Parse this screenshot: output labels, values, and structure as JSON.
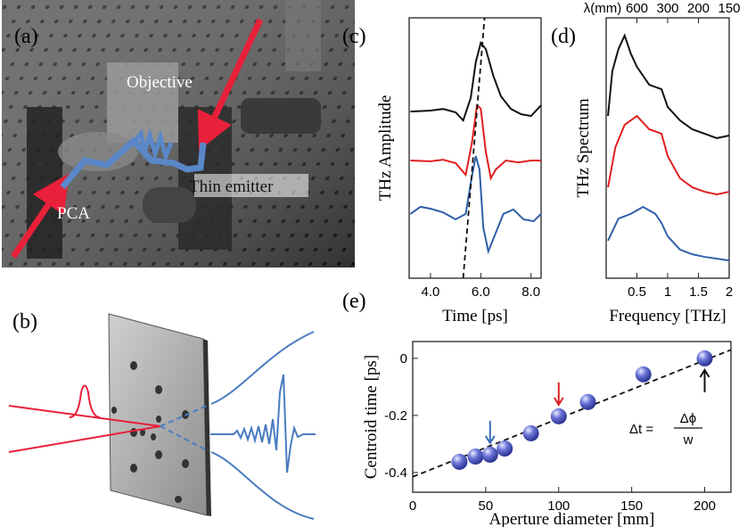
{
  "figure": {
    "panel_labels": [
      "(a)",
      "(b)",
      "(c)",
      "(d)",
      "(e)"
    ],
    "photo_labels": [
      "Objective",
      "Thin emitter",
      "PCA"
    ]
  },
  "chart_data": [
    {
      "type": "line",
      "x_label": "Time [ps]",
      "y_label": "THz Amplitude",
      "xlim": [
        3.15,
        8.4
      ],
      "ylim": [
        0,
        100
      ],
      "xticks": [
        {
          "value": 4,
          "label": "4.0"
        },
        {
          "value": 6,
          "label": "6.0"
        },
        {
          "value": 8,
          "label": "8.0"
        }
      ],
      "series": [
        {
          "color": "#111111",
          "x": [
            3.2,
            4.0,
            4.5,
            5.0,
            5.3,
            5.6,
            5.8,
            6.0,
            6.2,
            6.5,
            6.8,
            7.2,
            7.6,
            8.0,
            8.4
          ],
          "values": [
            64,
            64.4,
            65,
            63.7,
            60.6,
            69.2,
            82.9,
            90.4,
            88,
            77.7,
            69.9,
            65,
            63,
            62.3,
            66.4
          ]
        },
        {
          "color": "#e02020",
          "x": [
            3.2,
            4.0,
            4.5,
            5.0,
            5.4,
            5.65,
            5.85,
            6.0,
            6.2,
            6.4,
            6.6,
            7.0,
            7.5,
            8.0,
            8.4
          ],
          "values": [
            45.2,
            44.9,
            45.5,
            44.2,
            39.7,
            52.1,
            66.4,
            65.1,
            48.6,
            38.4,
            41.8,
            45.2,
            44.5,
            45.2,
            45.2
          ]
        },
        {
          "color": "#2f5fa8",
          "x": [
            3.2,
            3.6,
            4.0,
            4.5,
            5.0,
            5.4,
            5.6,
            5.8,
            5.95,
            6.1,
            6.3,
            6.5,
            6.9,
            7.3,
            7.7,
            8.1,
            8.4
          ],
          "values": [
            24.7,
            27.4,
            26.7,
            25.3,
            22.6,
            24.7,
            36.6,
            46.9,
            41.8,
            19.5,
            10.3,
            15.1,
            24.7,
            26.4,
            22.6,
            21.9,
            24.7
          ]
        }
      ],
      "guide_line": {
        "x": [
          5.3,
          6.15
        ],
        "y": [
          0,
          100
        ],
        "style": "dashed"
      }
    },
    {
      "type": "line",
      "x_label": "Frequency [THz]",
      "y_label": "THz Spectrum",
      "xlim": [
        0,
        2
      ],
      "ylim": [
        0,
        100
      ],
      "xticks": [
        0.5,
        1,
        1.5,
        2
      ],
      "x2_label": "λ(mm)",
      "x2ticks": [
        600,
        300,
        200,
        150
      ],
      "series": [
        {
          "color": "#111111",
          "x": [
            0.03,
            0.1,
            0.2,
            0.3,
            0.4,
            0.5,
            0.7,
            0.9,
            1.0,
            1.2,
            1.4,
            1.6,
            1.8,
            2.0
          ],
          "values": [
            62.3,
            79.5,
            88,
            93.2,
            86.3,
            81.2,
            74.3,
            72.6,
            65.8,
            60.6,
            57.2,
            55.5,
            53.8,
            54.8
          ]
        },
        {
          "color": "#e02020",
          "x": [
            0.03,
            0.15,
            0.3,
            0.5,
            0.7,
            0.9,
            1.0,
            1.2,
            1.4,
            1.6,
            1.8,
            2.0
          ],
          "values": [
            34.9,
            50.3,
            58.9,
            62.3,
            57.2,
            55.5,
            46.9,
            38.4,
            34.9,
            33.2,
            32.2,
            33.2
          ]
        },
        {
          "color": "#2f5fa8",
          "x": [
            0.03,
            0.2,
            0.4,
            0.6,
            0.8,
            0.9,
            1.0,
            1.2,
            1.4,
            1.6,
            2.0
          ],
          "values": [
            14.4,
            22.9,
            24.7,
            27.4,
            24.7,
            21.2,
            16.1,
            11,
            9.2,
            8.2,
            6.8
          ]
        }
      ]
    },
    {
      "type": "scatter",
      "x_label": "Aperture diameter [mm]",
      "y_label": "Centroid time [ps]",
      "xlim": [
        0,
        218
      ],
      "ylim": [
        -0.469,
        0.059
      ],
      "xticks": [
        0,
        50,
        100,
        150,
        200
      ],
      "yticks": [
        0,
        -0.2,
        -0.4
      ],
      "color": "#5b67c9",
      "x": [
        32,
        43,
        53,
        63,
        81,
        100,
        120,
        158,
        200
      ],
      "values": [
        -0.3625,
        -0.344,
        -0.3375,
        -0.316,
        -0.2625,
        -0.203,
        -0.153,
        -0.056,
        0
      ],
      "fit_line": {
        "x": [
          0,
          218
        ],
        "y": [
          -0.415,
          0.03
        ],
        "style": "dashed"
      },
      "arrows": [
        {
          "x": 53,
          "y": -0.3375,
          "color": "#3a6fb5",
          "side": "above"
        },
        {
          "x": 100,
          "y": -0.203,
          "color": "#e02020",
          "side": "above"
        },
        {
          "x": 200,
          "y": 0,
          "color": "#111111",
          "side": "below"
        }
      ],
      "equation": {
        "lhs": "Δt =",
        "numerator": "Δϕ",
        "denominator": "w"
      }
    }
  ]
}
